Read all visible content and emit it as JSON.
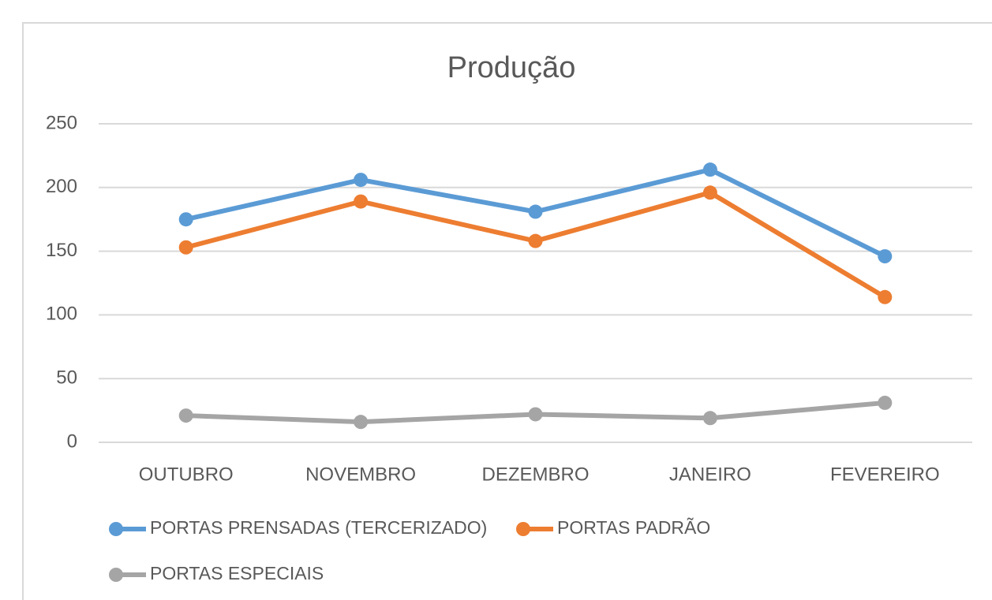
{
  "chart_data": {
    "type": "line",
    "title": "Produção",
    "categories": [
      "OUTUBRO",
      "NOVEMBRO",
      "DEZEMBRO",
      "JANEIRO",
      "FEVEREIRO"
    ],
    "series": [
      {
        "name": "PORTAS PRENSADAS (TERCERIZADO)",
        "color": "#5b9bd5",
        "values": [
          175,
          206,
          181,
          214,
          146
        ]
      },
      {
        "name": "PORTAS PADRÃO",
        "color": "#ed7d31",
        "values": [
          153,
          189,
          158,
          196,
          114
        ]
      },
      {
        "name": "PORTAS ESPECIAIS",
        "color": "#a5a5a5",
        "values": [
          21,
          16,
          22,
          19,
          31
        ]
      }
    ],
    "ylim": [
      0,
      250
    ],
    "yticks": [
      0,
      50,
      100,
      150,
      200,
      250
    ],
    "grid": true,
    "legend": "bottom"
  }
}
